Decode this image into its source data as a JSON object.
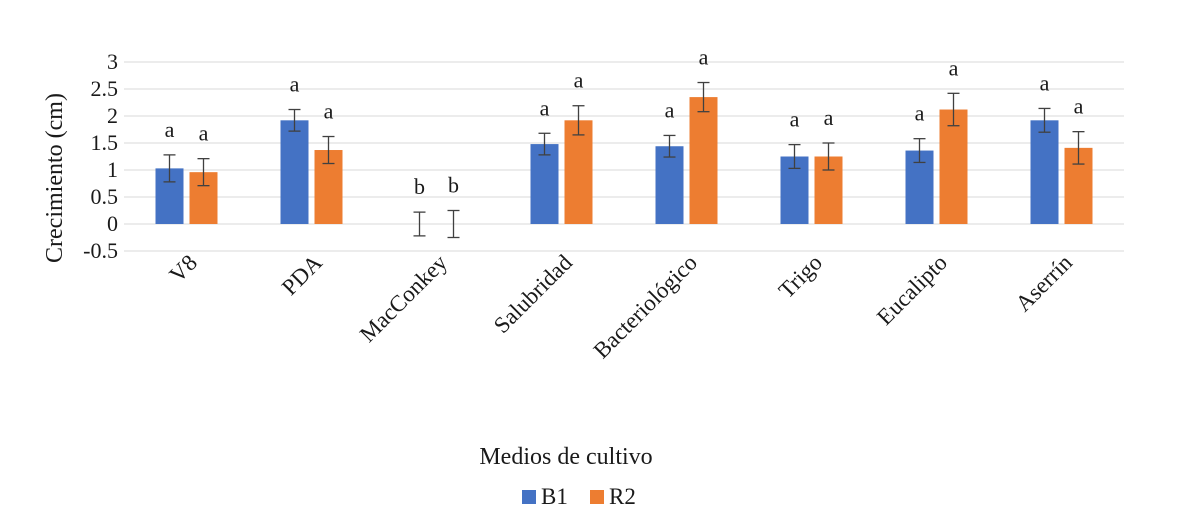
{
  "chart_data": {
    "type": "bar",
    "title": "",
    "xlabel": "Medios de cultivo",
    "ylabel": "Crecimiento (cm)",
    "ylim": [
      -0.5,
      3
    ],
    "yticks": [
      "3",
      "2.5",
      "2",
      "1.5",
      "1",
      "0.5",
      "0",
      "-0.5"
    ],
    "ytick_values": [
      3,
      2.5,
      2,
      1.5,
      1,
      0.5,
      0,
      -0.5
    ],
    "grid": true,
    "legend_position": "bottom",
    "categories": [
      "V8",
      "PDA",
      "MacConkey",
      "Salubridad",
      "Bacteriológico",
      "Trigo",
      "Eucalipto",
      "Aserrín"
    ],
    "series": [
      {
        "name": "B1",
        "color": "#4472C4",
        "values": [
          1.03,
          1.92,
          0,
          1.48,
          1.44,
          1.25,
          1.36,
          1.92
        ],
        "errors": [
          0.25,
          0.2,
          0.22,
          0.2,
          0.2,
          0.22,
          0.22,
          0.22
        ],
        "letters": [
          "a",
          "a",
          "b",
          "a",
          "a",
          "a",
          "a",
          "a"
        ]
      },
      {
        "name": "R2",
        "color": "#ED7D31",
        "values": [
          0.96,
          1.37,
          0,
          1.92,
          2.35,
          1.25,
          2.12,
          1.41
        ],
        "errors": [
          0.25,
          0.25,
          0.25,
          0.27,
          0.27,
          0.25,
          0.3,
          0.3
        ],
        "letters": [
          "a",
          "a",
          "b",
          "a",
          "a",
          "a",
          "a",
          "a"
        ]
      }
    ]
  }
}
